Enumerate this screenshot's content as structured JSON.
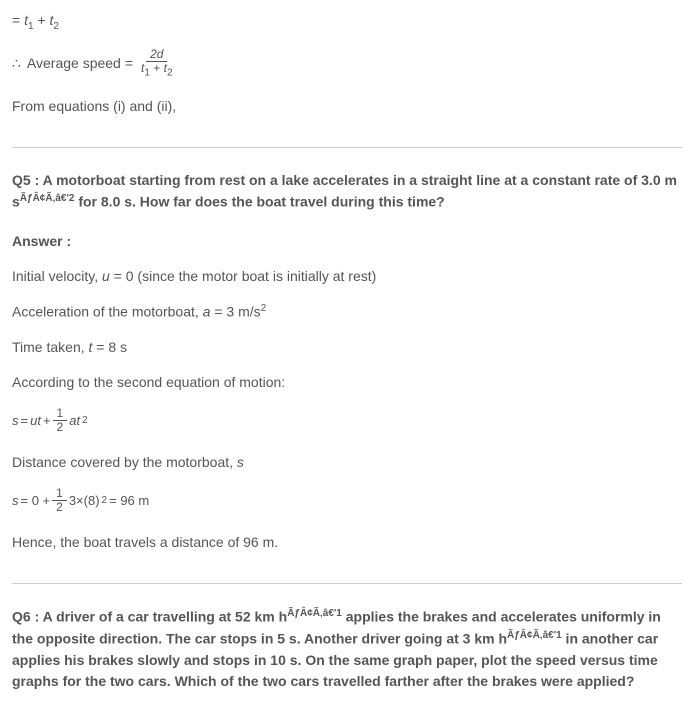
{
  "top": {
    "eq1_prefix": "= ",
    "t1": "t",
    "sub1": "1",
    "plus": " + ",
    "t2": "t",
    "sub2": "2",
    "avg_label": "Average speed",
    "avg_eq": " = ",
    "avg_num": "2d",
    "avg_den_t1": "t",
    "avg_den_s1": "1",
    "avg_den_plus": " + ",
    "avg_den_t2": "t",
    "avg_den_s2": "2",
    "from_eq": "From equations (i) and (ii),"
  },
  "q5": {
    "label": "Q5 :  ",
    "text": "A motorboat starting from rest on a lake accelerates in a straight line at a constant rate of 3.0 m s",
    "encoded": "ÃƒÂ¢Ã‚â€",
    "expo": "'2",
    "text2": " for 8.0 s. How far does the boat travel during this time?",
    "answer_label": "Answer :",
    "line1_a": "Initial velocity, ",
    "line1_u": "u",
    "line1_b": " = 0 (since the motor boat is initially at rest)",
    "line2_a": "Acceleration of the motorboat, ",
    "line2_i": "a",
    "line2_b": " = 3 m/s",
    "line2_sup": "2",
    "line3_a": "Time taken, ",
    "line3_i": "t",
    "line3_b": " = 8 s",
    "line4": "According to the second equation of motion:",
    "eq_s": "s",
    "eq_eq": " = ",
    "eq_ut": "ut",
    "eq_plus": " + ",
    "frac1_num": "1",
    "frac1_den": "2",
    "eq_at": "at",
    "eq_at_sup": "2",
    "line5_a": "Distance covered by the motorboat, ",
    "line5_i": "s",
    "eq2_s": "s",
    "eq2_eq": " = 0 + ",
    "eq2_num": "1",
    "eq2_den": "2",
    "eq2_rest": "3×(8)",
    "eq2_sup": "2",
    "eq2_result": " = 96 m",
    "line6": "Hence, the boat travels a distance of 96 m."
  },
  "q6": {
    "label": "Q6 :  ",
    "text1": "A driver of a car travelling at 52 km h",
    "encoded": "ÃƒÂ¢Ã‚â€",
    "expo": "'1",
    "text2": " applies the brakes and accelerates uniformly in the opposite direction. The car stops in 5 s. Another driver going at 3 km h",
    "text3": " in another car applies his brakes slowly and stops in 10 s. On the same graph paper, plot the speed versus time graphs for the two cars. Which of the two cars travelled farther after the brakes were applied?"
  }
}
